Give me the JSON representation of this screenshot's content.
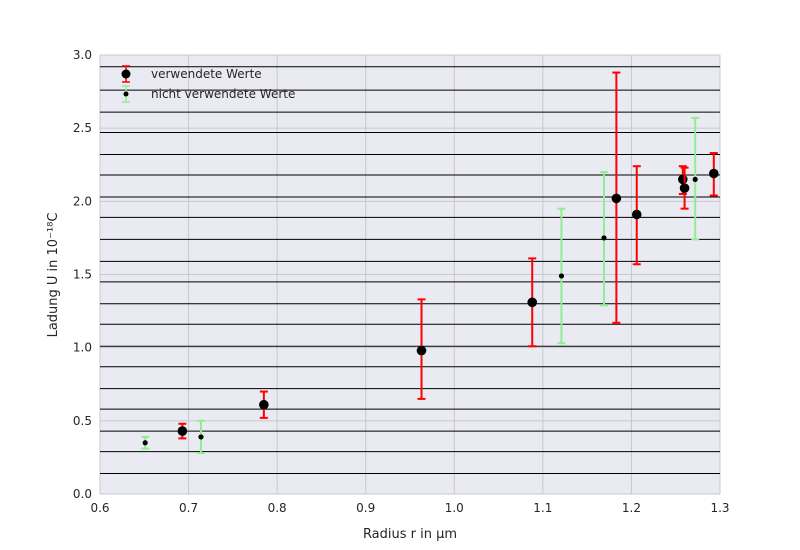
{
  "chart_data": {
    "type": "scatter",
    "xlim": [
      0.6,
      1.3
    ],
    "ylim": [
      0.0,
      3.0
    ],
    "xticks": [
      "0.6",
      "0.7",
      "0.8",
      "0.9",
      "1.0",
      "1.1",
      "1.2",
      "1.3"
    ],
    "yticks": [
      "0.0",
      "0.5",
      "1.0",
      "1.5",
      "2.0",
      "2.5",
      "3.0"
    ],
    "xlabel": "Radius r in μm",
    "ylabel": "Ladung U in 10⁻¹⁸C",
    "hlines": [
      0.14,
      0.29,
      0.43,
      0.58,
      0.72,
      0.87,
      1.01,
      1.16,
      1.3,
      1.45,
      1.59,
      1.74,
      1.89,
      2.03,
      2.18,
      2.32,
      2.47,
      2.61,
      2.76,
      2.92
    ],
    "legend_position": "upper-left",
    "series": [
      {
        "name": "verwendete Werte",
        "color": "#ff0000",
        "marker_color": "#000000",
        "points": [
          {
            "x": 0.693,
            "y": 0.43,
            "lo": 0.38,
            "hi": 0.48
          },
          {
            "x": 0.785,
            "y": 0.61,
            "lo": 0.52,
            "hi": 0.7
          },
          {
            "x": 0.963,
            "y": 0.98,
            "lo": 0.65,
            "hi": 1.33
          },
          {
            "x": 1.088,
            "y": 1.31,
            "lo": 1.01,
            "hi": 1.61
          },
          {
            "x": 1.183,
            "y": 2.02,
            "lo": 1.17,
            "hi": 2.88
          },
          {
            "x": 1.206,
            "y": 1.91,
            "lo": 1.57,
            "hi": 2.24
          },
          {
            "x": 1.258,
            "y": 2.15,
            "lo": 2.05,
            "hi": 2.24
          },
          {
            "x": 1.26,
            "y": 2.09,
            "lo": 1.95,
            "hi": 2.23
          },
          {
            "x": 1.293,
            "y": 2.19,
            "lo": 2.04,
            "hi": 2.33
          }
        ]
      },
      {
        "name": "nicht verwendete Werte",
        "color": "#90ee90",
        "marker_color": "#000000",
        "points": [
          {
            "x": 0.651,
            "y": 0.35,
            "lo": 0.31,
            "hi": 0.39
          },
          {
            "x": 0.714,
            "y": 0.39,
            "lo": 0.28,
            "hi": 0.5
          },
          {
            "x": 1.121,
            "y": 1.49,
            "lo": 1.03,
            "hi": 1.95
          },
          {
            "x": 1.169,
            "y": 1.75,
            "lo": 1.29,
            "hi": 2.2
          },
          {
            "x": 1.272,
            "y": 2.15,
            "lo": 1.74,
            "hi": 2.57
          }
        ]
      }
    ]
  }
}
